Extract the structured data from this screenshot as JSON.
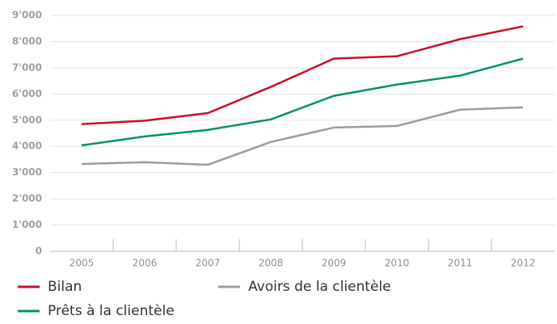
{
  "chart_data": {
    "type": "line",
    "categories": [
      "2005",
      "2006",
      "2007",
      "2008",
      "2009",
      "2010",
      "2011",
      "2012"
    ],
    "series": [
      {
        "name": "Bilan",
        "color": "#c8102e",
        "values": [
          4850,
          4980,
          5270,
          6270,
          7350,
          7440,
          8090,
          8580
        ]
      },
      {
        "name": "Avoirs de la clientèle",
        "color": "#9d9d9d",
        "values": [
          3330,
          3400,
          3300,
          4170,
          4720,
          4780,
          5400,
          5490
        ]
      },
      {
        "name": "Prêts à la clientèle",
        "color": "#00945e",
        "values": [
          4040,
          4380,
          4630,
          5030,
          5930,
          6360,
          6700,
          7350
        ]
      }
    ],
    "ylim": [
      0,
      9000
    ],
    "yticks": [
      0,
      {
        "value": 1000,
        "label": "1'000"
      },
      {
        "value": 2000,
        "label": "2'000"
      },
      {
        "value": 3000,
        "label": "3'000"
      },
      {
        "value": 4000,
        "label": "4'000"
      },
      {
        "value": 5000,
        "label": "5'000"
      },
      {
        "value": 6000,
        "label": "6'000"
      },
      {
        "value": 7000,
        "label": "7'000"
      },
      {
        "value": 8000,
        "label": "8'000"
      },
      {
        "value": 9000,
        "label": "9'000"
      }
    ],
    "grid": true
  }
}
